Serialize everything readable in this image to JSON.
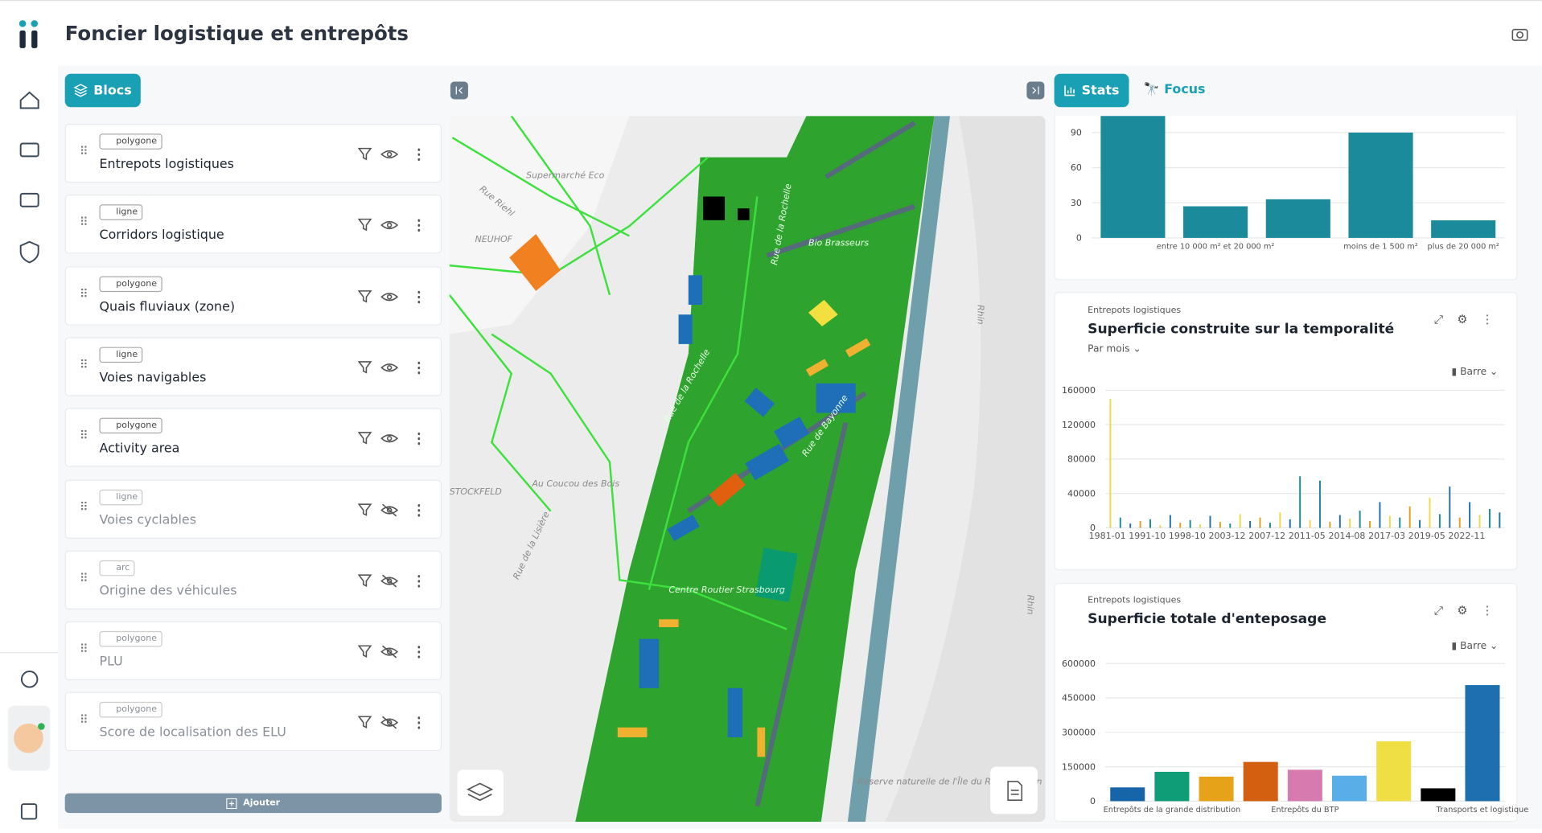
{
  "header": {
    "title": "Foncier logistique et entrepôts"
  },
  "toolbar": {
    "blocks_button": "Blocs",
    "add_button": "Ajouter",
    "stats_tab": "Stats",
    "focus_tab": "Focus"
  },
  "layers": [
    {
      "type": "polygone",
      "name": "Entrepots logistiques",
      "visible": true
    },
    {
      "type": "ligne",
      "name": "Corridors logistique",
      "visible": true
    },
    {
      "type": "polygone",
      "name": "Quais fluviaux (zone)",
      "visible": true
    },
    {
      "type": "ligne",
      "name": "Voies navigables",
      "visible": true
    },
    {
      "type": "polygone",
      "name": "Activity area",
      "visible": true
    },
    {
      "type": "ligne",
      "name": "Voies cyclables",
      "visible": false
    },
    {
      "type": "arc",
      "name": "Origine des véhicules",
      "visible": false
    },
    {
      "type": "polygone",
      "name": "PLU",
      "visible": false
    },
    {
      "type": "polygone",
      "name": "Score de localisation des ELU",
      "visible": false
    }
  ],
  "map": {
    "labels": [
      "Supermarché Eco",
      "Rue Riehl",
      "NEUHOF",
      "Rue de la Rochelle",
      "Bio Brasseurs",
      "Rue de la Rochelle",
      "Rue de Bayonne",
      "STOCKFELD",
      "Au Coucou des Bois",
      "Rue de la Lisière",
      "Centre Routier Strasbourg",
      "Rhin",
      "Rhin",
      "Réserve naturelle de l'Île du Rohrschollen"
    ]
  },
  "charts": [
    {
      "type": "bar",
      "color": "#1b8a9a",
      "categories": [
        null,
        "entre 10 000 m² et 20 000 m²",
        null,
        "moins de 1 500 m²",
        "plus de 20 000 m²"
      ],
      "values": [
        105,
        27,
        33,
        90,
        15
      ],
      "ylim": [
        0,
        105
      ],
      "yticks": [
        0,
        30,
        60,
        90
      ],
      "grid": true
    },
    {
      "type": "bar",
      "source": "Entrepots logistiques",
      "title": "Superficie construite sur la temporalité",
      "period": "Par mois",
      "mode": "Barre",
      "categories": [
        "1981-01",
        null,
        null,
        null,
        "1991-10",
        null,
        null,
        null,
        "1998-10",
        null,
        null,
        null,
        "2003-12",
        null,
        null,
        null,
        "2007-12",
        null,
        null,
        null,
        "2011-05",
        null,
        null,
        null,
        "2014-08",
        null,
        null,
        null,
        "2017-03",
        null,
        null,
        null,
        "2019-05",
        null,
        null,
        null,
        "2022-11",
        null,
        null,
        null
      ],
      "values": [
        150000,
        12000,
        5000,
        8000,
        10000,
        3000,
        15000,
        6000,
        9000,
        4000,
        14000,
        7000,
        5000,
        16000,
        8000,
        12000,
        6000,
        18000,
        10000,
        60000,
        9000,
        55000,
        7000,
        15000,
        11000,
        20000,
        8000,
        30000,
        14000,
        12000,
        25000,
        9000,
        35000,
        16000,
        48000,
        12000,
        30000,
        15000,
        22000,
        18000
      ],
      "colors": [
        "#f0d84a",
        "#1b8a9a",
        "#2070b0",
        "#e0a020",
        "#1b8a9a",
        "#f0d84a",
        "#2070b0",
        "#e0a020",
        "#1b8a9a",
        "#f0d84a",
        "#2070b0",
        "#e0a020",
        "#1b8a9a",
        "#f0d84a",
        "#2070b0",
        "#e0a020",
        "#1b8a9a",
        "#f0d84a",
        "#2070b0",
        "#1b8a9a",
        "#f0d84a",
        "#1b8a9a",
        "#e0a020",
        "#2070b0",
        "#f0d84a",
        "#1b8a9a",
        "#e0a020",
        "#2070b0",
        "#f0d84a",
        "#1b8a9a",
        "#e0a020",
        "#2070b0",
        "#f0d84a",
        "#1b8a9a",
        "#2070b0",
        "#e0a020",
        "#2070b0",
        "#f0d84a",
        "#1b8a9a",
        "#2070b0"
      ],
      "ylim": [
        0,
        160000
      ],
      "yticks": [
        0,
        40000,
        80000,
        120000,
        160000
      ],
      "grid": true
    },
    {
      "type": "bar",
      "source": "Entrepots logistiques",
      "title": "Superficie totale d'enteposage",
      "mode": "Barre",
      "categories": [
        null,
        "Entrepôts de la grande distribution",
        null,
        null,
        "Entrepôts du BTP",
        null,
        null,
        null,
        "Transports et logistique"
      ],
      "values": [
        60000,
        128000,
        107000,
        171000,
        137000,
        111000,
        261000,
        56000,
        506000
      ],
      "colors": [
        "#1565a8",
        "#0f9d78",
        "#e6a219",
        "#d35f10",
        "#d77ab0",
        "#5aaee8",
        "#efdf45",
        "#000000",
        "#1e6fb0"
      ],
      "ylim": [
        0,
        600000
      ],
      "yticks": [
        0,
        150000,
        300000,
        450000,
        600000
      ],
      "grid": true
    }
  ]
}
